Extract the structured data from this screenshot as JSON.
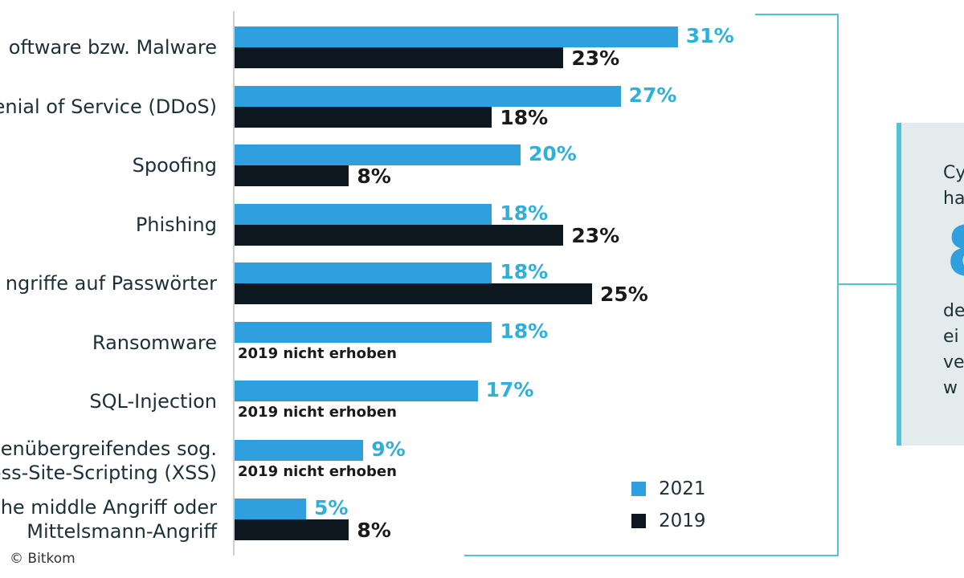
{
  "colors": {
    "series_2021": "#2f9fde",
    "series_2019": "#0d1820",
    "label_2021": "#2fb0d8",
    "label_2019": "#1a1a1a",
    "bracket": "#52c3d6",
    "box_bg": "#e4ebec"
  },
  "chart_data": {
    "type": "bar",
    "orientation": "horizontal",
    "categories": [
      [
        "oftware bzw. Malware"
      ],
      [
        "enial of Service (DDoS)"
      ],
      [
        "Spoofing"
      ],
      [
        "Phishing"
      ],
      [
        "ngriffe auf Passwörter"
      ],
      [
        "Ransomware"
      ],
      [
        "SQL-Injection"
      ],
      [
        "enübergreifendes sog.",
        "oss-Site-Scripting (XSS)"
      ],
      [
        "he middle Angriff oder",
        "Mittelsmann-Angriff"
      ]
    ],
    "series": [
      {
        "name": "2021",
        "values": [
          31,
          27,
          20,
          18,
          18,
          18,
          17,
          9,
          5
        ]
      },
      {
        "name": "2019",
        "values": [
          23,
          18,
          8,
          23,
          25,
          null,
          null,
          null,
          8
        ]
      }
    ],
    "value_suffix": "%",
    "xlim": [
      0,
      31
    ],
    "not_collected_text": "2019 nicht erhoben",
    "legend": [
      "2021",
      "2019"
    ],
    "legend_position": "bottom-right"
  },
  "info_box": {
    "lines": [
      "Cy",
      "ha",
      "8",
      "de",
      "ei",
      "ve",
      "w"
    ]
  },
  "source": "© Bitkom"
}
